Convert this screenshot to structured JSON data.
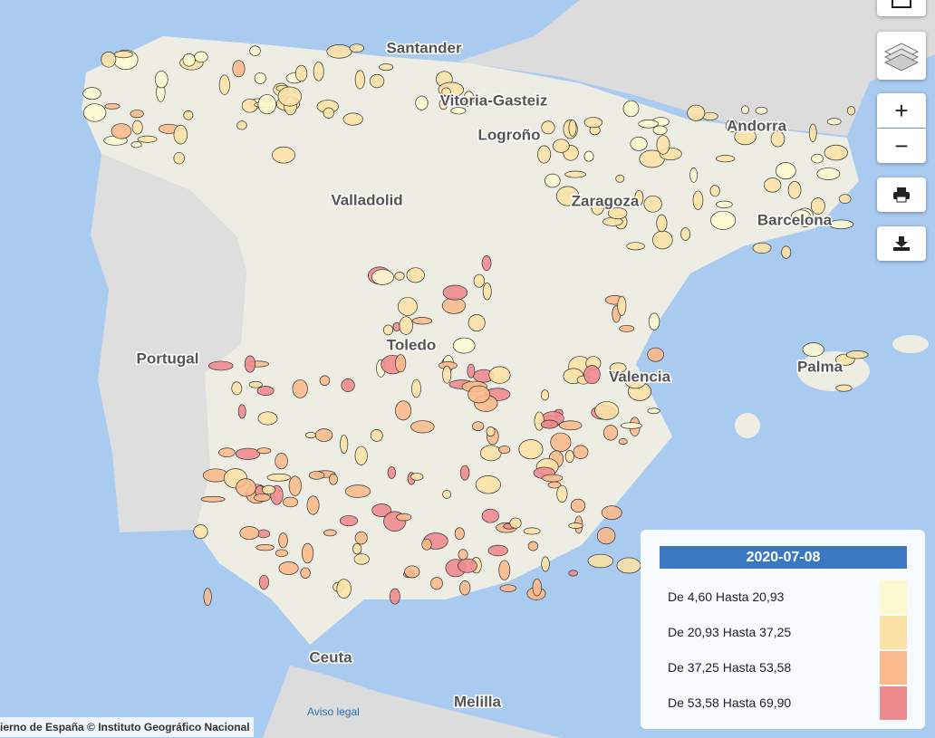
{
  "map": {
    "cities": [
      "Santander",
      "Vitoria-Gasteiz",
      "Logroño",
      "Andorra",
      "Valladolid",
      "Zaragoza",
      "Barcelona",
      "Portugal",
      "Toledo",
      "Valencia",
      "Palma",
      "Ceuta",
      "Melilla"
    ],
    "controls": {
      "zoom_in": "+",
      "zoom_out": "−"
    },
    "attribution": {
      "government": "ierno de España",
      "ign": "© Instituto Geográfico Nacional"
    },
    "legal_link": "Aviso legal",
    "legend": {
      "title": "2020-07-08",
      "items": [
        {
          "label": "De 4,60 Hasta 20,93",
          "color": "#fcf9cf"
        },
        {
          "label": "De 20,93 Hasta 37,25",
          "color": "#fbe1a6"
        },
        {
          "label": "De 37,25 Hasta 53,58",
          "color": "#f9b98c"
        },
        {
          "label": "De 53,58 Hasta 69,90",
          "color": "#ee8a8e"
        }
      ]
    }
  }
}
